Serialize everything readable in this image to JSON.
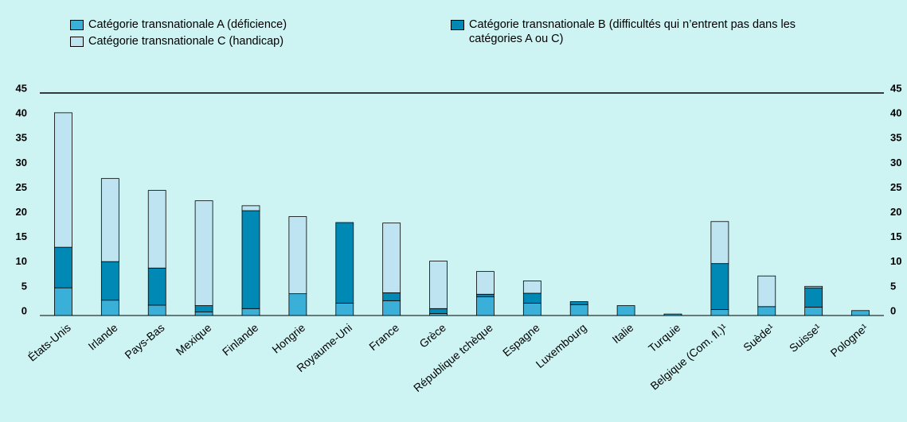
{
  "chart_data": {
    "type": "stacked_bar",
    "categories": [
      "États-Unis",
      "Irlande",
      "Pays-Bas",
      "Mexique",
      "Finlande",
      "Hongrie",
      "Royaume-Uni",
      "France",
      "Grèce",
      "République tchèque",
      "Espagne",
      "Luxembourg",
      "Italie",
      "Turquie",
      "Belgique (Com. fl.)¹",
      "Suède¹",
      "Suisse¹",
      "Pologne¹"
    ],
    "series": [
      {
        "name": "Catégorie transnationale A (déficience)",
        "color": "#3ab0d8",
        "values": [
          5.6,
          3.1,
          2.1,
          0.7,
          1.4,
          4.4,
          2.5,
          3.0,
          0.4,
          3.8,
          2.5,
          2.2,
          2.0,
          0.3,
          1.2,
          1.8,
          1.7,
          1.0
        ]
      },
      {
        "name": "Catégorie transnationale B (difficultés qui n’entrent pas dans les catégories A ou C)",
        "color": "#0089b5",
        "values": [
          8.2,
          7.8,
          7.5,
          1.3,
          19.8,
          0,
          16.3,
          1.6,
          1.0,
          0.5,
          2.0,
          0.6,
          0,
          0,
          9.3,
          0,
          3.9,
          0
        ]
      },
      {
        "name": "Catégorie transnationale C (handicap)",
        "color": "#bde4f0",
        "values": [
          27.2,
          16.8,
          15.7,
          21.2,
          1.0,
          15.6,
          0,
          14.1,
          9.6,
          4.6,
          2.5,
          0,
          0,
          0,
          8.5,
          6.2,
          0.3,
          0
        ]
      }
    ],
    "ylim": [
      0,
      45
    ],
    "yticks": [
      0,
      5,
      10,
      15,
      20,
      25,
      30,
      35,
      40,
      45
    ]
  }
}
